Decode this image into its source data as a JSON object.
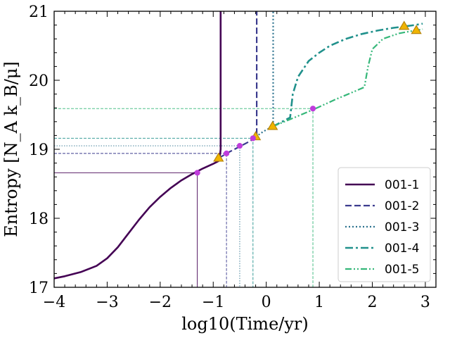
{
  "chart_data": {
    "type": "line",
    "title": "",
    "xlabel": "log10(Time/yr)",
    "ylabel": "Entropy [N_A k_B/μ]",
    "xlim": [
      -4,
      3.2
    ],
    "ylim": [
      17,
      21
    ],
    "xticks": [
      -4,
      -3,
      -2,
      -1,
      0,
      1,
      2,
      3
    ],
    "yticks": [
      17,
      18,
      19,
      20,
      21
    ],
    "xtick_labels": [
      "−4",
      "−3",
      "−2",
      "−1",
      "0",
      "1",
      "2",
      "3"
    ],
    "ytick_labels": [
      "17",
      "18",
      "19",
      "20",
      "21"
    ],
    "legend_position": "lower-right",
    "series": [
      {
        "name": "001-1",
        "color": "#440154",
        "style": "solid",
        "line_width": 2.6,
        "x": [
          -4,
          -3.8,
          -3.5,
          -3.2,
          -3.0,
          -2.8,
          -2.6,
          -2.4,
          -2.2,
          -2.0,
          -1.8,
          -1.6,
          -1.4,
          -1.2,
          -1.0,
          -0.9,
          -0.88,
          -0.86,
          -0.86
        ],
        "y": [
          17.13,
          17.16,
          17.22,
          17.31,
          17.42,
          17.58,
          17.78,
          17.98,
          18.16,
          18.31,
          18.44,
          18.55,
          18.64,
          18.72,
          18.79,
          18.83,
          18.86,
          19.0,
          21.0
        ],
        "markers": [
          {
            "x": -1.3,
            "y": 18.66,
            "shape": "circle"
          },
          {
            "x": -0.9,
            "y": 18.87,
            "shape": "triangle"
          }
        ]
      },
      {
        "name": "001-2",
        "color": "#3b3b8e",
        "style": "dashed",
        "line_width": 2.2,
        "x": [
          -0.9,
          -0.7,
          -0.5,
          -0.3,
          -0.18,
          -0.18
        ],
        "y": [
          18.87,
          18.96,
          19.04,
          19.12,
          19.19,
          21.0
        ],
        "markers": [
          {
            "x": -0.75,
            "y": 18.94,
            "shape": "circle"
          },
          {
            "x": -0.2,
            "y": 19.18,
            "shape": "triangle"
          }
        ]
      },
      {
        "name": "001-3",
        "color": "#2c728e",
        "style": "dotted",
        "line_width": 2.2,
        "x": [
          -0.2,
          -0.05,
          0.1,
          0.13,
          0.13
        ],
        "y": [
          19.18,
          19.26,
          19.32,
          19.33,
          21.0
        ],
        "markers": [
          {
            "x": -0.5,
            "y": 19.05,
            "shape": "circle"
          },
          {
            "x": 0.12,
            "y": 19.33,
            "shape": "triangle"
          }
        ]
      },
      {
        "name": "001-4",
        "color": "#21918c",
        "style": "dashdot",
        "line_width": 2.6,
        "x": [
          0.12,
          0.3,
          0.45,
          0.5,
          0.6,
          0.8,
          1.0,
          1.2,
          1.5,
          1.8,
          2.1,
          2.4,
          2.6,
          2.8,
          2.95
        ],
        "y": [
          19.33,
          19.4,
          19.46,
          19.8,
          20.05,
          20.28,
          20.4,
          20.5,
          20.6,
          20.67,
          20.72,
          20.76,
          20.78,
          20.8,
          20.82
        ],
        "markers": [
          {
            "x": -0.25,
            "y": 19.16,
            "shape": "circle"
          },
          {
            "x": 2.6,
            "y": 20.78,
            "shape": "triangle"
          }
        ]
      },
      {
        "name": "001-5",
        "color": "#35b779",
        "style": "dashdotdot",
        "line_width": 2.2,
        "x": [
          0.12,
          0.5,
          0.9,
          1.3,
          1.7,
          1.85,
          1.92,
          2.0,
          2.2,
          2.5,
          2.8,
          2.95
        ],
        "y": [
          19.33,
          19.45,
          19.58,
          19.72,
          19.85,
          19.9,
          20.2,
          20.45,
          20.6,
          20.68,
          20.72,
          20.74
        ],
        "markers": [
          {
            "x": 0.88,
            "y": 19.59,
            "shape": "circle"
          },
          {
            "x": 2.83,
            "y": 20.72,
            "shape": "triangle"
          }
        ]
      }
    ]
  }
}
